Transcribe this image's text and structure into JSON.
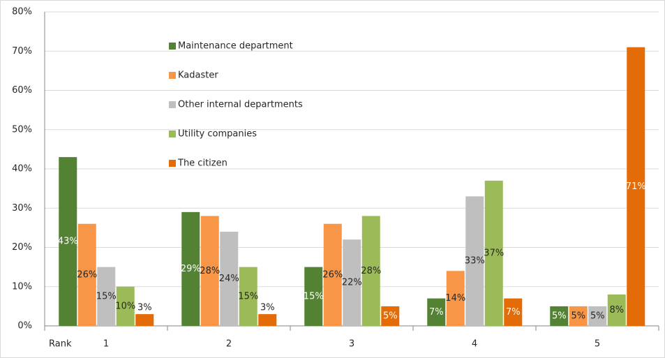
{
  "chart_data": {
    "type": "bar",
    "x_label": "Rank",
    "categories": [
      "1",
      "2",
      "3",
      "4",
      "5"
    ],
    "series": [
      {
        "name": "Maintenance department",
        "color": "#548235",
        "label_color": "#ffffff",
        "values": [
          43,
          29,
          15,
          7,
          5
        ],
        "value_labels": [
          "43%",
          "29%",
          "15%",
          "7%",
          "5%"
        ]
      },
      {
        "name": "Kadaster",
        "color": "#f79646",
        "label_color": "#262626",
        "values": [
          26,
          28,
          26,
          14,
          5
        ],
        "value_labels": [
          "26%",
          "28%",
          "26%",
          "14%",
          "5%"
        ]
      },
      {
        "name": "Other internal departments",
        "color": "#bfbfbf",
        "label_color": "#262626",
        "values": [
          15,
          24,
          22,
          33,
          5
        ],
        "value_labels": [
          "15%",
          "24%",
          "22%",
          "33%",
          "5%"
        ]
      },
      {
        "name": "Utility companies",
        "color": "#9bbb59",
        "label_color": "#262626",
        "values": [
          10,
          15,
          28,
          37,
          8
        ],
        "value_labels": [
          "10%",
          "15%",
          "28%",
          "37%",
          "8%"
        ]
      },
      {
        "name": "The citizen",
        "color": "#e36c09",
        "label_color": "#ffffff",
        "values": [
          3,
          3,
          5,
          7,
          71
        ],
        "value_labels": [
          "3%",
          "3%",
          "5%",
          "7%",
          "71%"
        ]
      }
    ],
    "ylim": [
      0,
      80
    ],
    "yticks": [
      {
        "value": 0,
        "label": "0%"
      },
      {
        "value": 10,
        "label": "10%"
      },
      {
        "value": 20,
        "label": "20%"
      },
      {
        "value": 30,
        "label": "30%"
      },
      {
        "value": 40,
        "label": "40%"
      },
      {
        "value": 50,
        "label": "50%"
      },
      {
        "value": 60,
        "label": "60%"
      },
      {
        "value": 70,
        "label": "70%"
      },
      {
        "value": 80,
        "label": "80%"
      }
    ],
    "grid": true
  }
}
